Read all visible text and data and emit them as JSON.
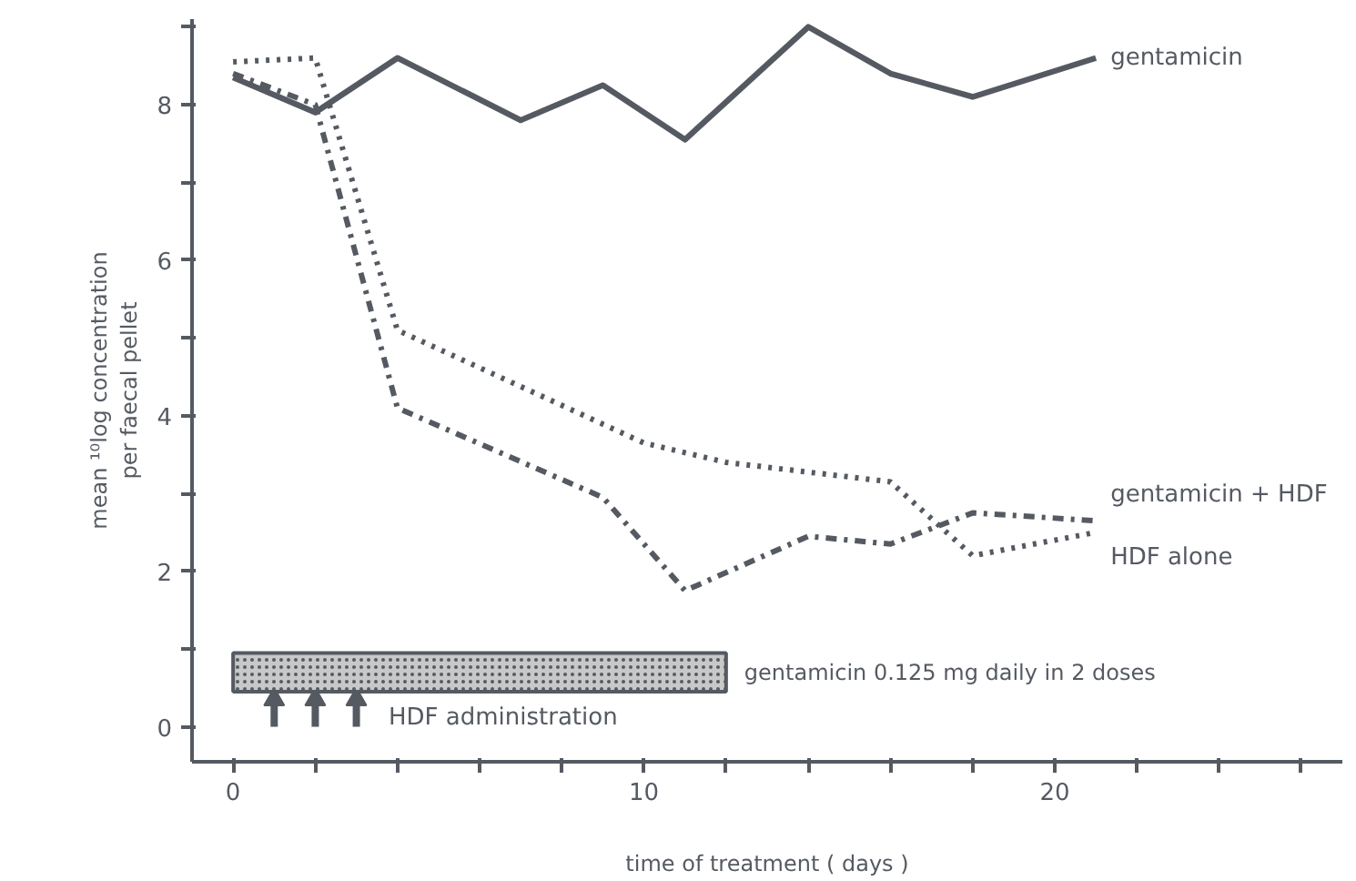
{
  "chart_data": {
    "type": "line",
    "xlabel": "time of treatment ( days )",
    "ylabel": "mean ¹⁰log concentration\nper faecal pellet",
    "xlim": [
      -1,
      27
    ],
    "ylim": [
      -0.45,
      9.1
    ],
    "xticks": [
      0,
      {
        "value": 2,
        "label": null
      },
      {
        "value": 4,
        "label": null
      },
      {
        "value": 6,
        "label": null
      },
      {
        "value": 8,
        "label": null
      },
      10,
      {
        "value": 12,
        "label": null
      },
      {
        "value": 14,
        "label": null
      },
      {
        "value": 16,
        "label": null
      },
      {
        "value": 18,
        "label": null
      },
      20,
      {
        "value": 22,
        "label": null
      },
      {
        "value": 24,
        "label": null
      },
      {
        "value": 26,
        "label": null
      }
    ],
    "yticks": [
      0,
      {
        "value": 1,
        "label": null
      },
      2,
      {
        "value": 3,
        "label": null
      },
      4,
      {
        "value": 5,
        "label": null
      },
      6,
      {
        "value": 7,
        "label": null
      },
      8,
      {
        "value": 9,
        "label": null
      }
    ],
    "grid": false,
    "series": [
      {
        "name": "gentamicin",
        "color": "#555a62",
        "line_style": "solid",
        "x": [
          0,
          2,
          4,
          7,
          9,
          11,
          14,
          16,
          18,
          21
        ],
        "values": [
          8.35,
          7.9,
          8.6,
          7.8,
          8.25,
          7.55,
          9.0,
          8.4,
          8.1,
          8.6
        ]
      },
      {
        "name": "gentamicin + HDF",
        "color": "#555a62",
        "line_style": "dashdot",
        "x": [
          0,
          2,
          4,
          9,
          11,
          14,
          16,
          18,
          21
        ],
        "values": [
          8.4,
          8.0,
          4.1,
          2.95,
          1.75,
          2.45,
          2.35,
          2.75,
          2.65
        ]
      },
      {
        "name": "HDF alone",
        "color": "#555a62",
        "line_style": "dotted",
        "x": [
          0,
          2,
          4,
          10,
          12,
          16,
          18,
          21
        ],
        "values": [
          8.55,
          8.6,
          5.1,
          3.65,
          3.4,
          3.15,
          2.2,
          2.5
        ]
      },
      {
        "type": "lollipop",
        "marker": "triangle",
        "color": "#555a62",
        "x": [
          1,
          2,
          3
        ],
        "values": [
          0.35,
          0.35,
          0.35
        ]
      }
    ],
    "bands": [
      {
        "axis": "x",
        "from": 0,
        "to": 12,
        "label": "gentamicin  0.125 mg daily in 2 doses",
        "color": "#c8c8c8"
      }
    ],
    "annotations": [
      "HDF administration"
    ]
  }
}
